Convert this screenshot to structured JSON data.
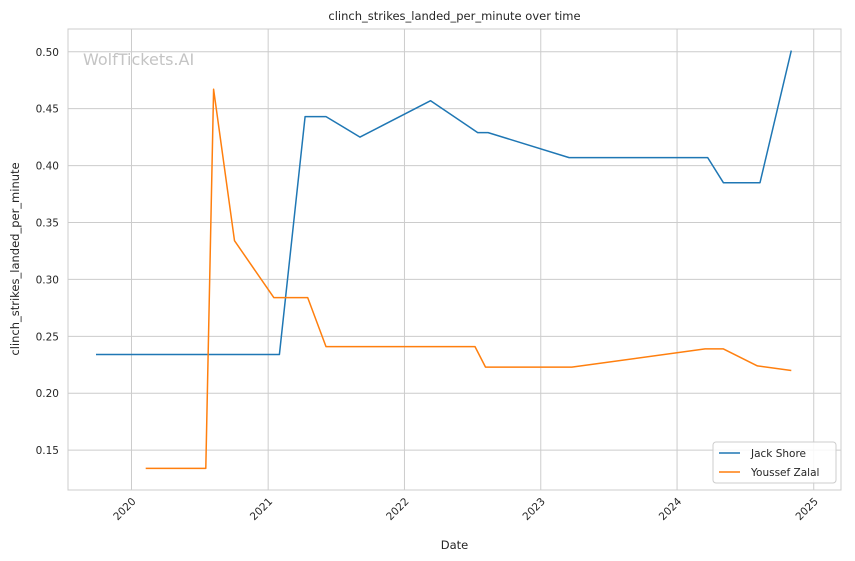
{
  "chart_data": {
    "type": "line",
    "title": "clinch_strikes_landed_per_minute over time",
    "xlabel": "Date",
    "ylabel": "clinch_strikes_landed_per_minute",
    "watermark": "WolfTickets.AI",
    "xlim": [
      "2019-07-15",
      "2025-03-15"
    ],
    "ylim": [
      0.115,
      0.52
    ],
    "x_ticks": [
      "2020",
      "2021",
      "2022",
      "2023",
      "2024",
      "2025"
    ],
    "y_ticks": [
      "0.15",
      "0.20",
      "0.25",
      "0.30",
      "0.35",
      "0.40",
      "0.45",
      "0.50"
    ],
    "grid": true,
    "legend_position": "lower-right",
    "series": [
      {
        "name": "Jack Shore",
        "color": "#1f77b4",
        "points": [
          {
            "x": "2019-09-28",
            "y": 0.234
          },
          {
            "x": "2021-01-31",
            "y": 0.234
          },
          {
            "x": "2021-04-10",
            "y": 0.443
          },
          {
            "x": "2021-06-05",
            "y": 0.443
          },
          {
            "x": "2021-09-04",
            "y": 0.425
          },
          {
            "x": "2022-03-12",
            "y": 0.457
          },
          {
            "x": "2022-07-16",
            "y": 0.429
          },
          {
            "x": "2022-08-13",
            "y": 0.429
          },
          {
            "x": "2023-03-18",
            "y": 0.407
          },
          {
            "x": "2024-03-23",
            "y": 0.407
          },
          {
            "x": "2024-05-04",
            "y": 0.385
          },
          {
            "x": "2024-08-10",
            "y": 0.385
          },
          {
            "x": "2024-11-02",
            "y": 0.501
          }
        ]
      },
      {
        "name": "Youssef Zalal",
        "color": "#ff7f0e",
        "points": [
          {
            "x": "2020-02-08",
            "y": 0.134
          },
          {
            "x": "2020-07-18",
            "y": 0.134
          },
          {
            "x": "2020-08-08",
            "y": 0.467
          },
          {
            "x": "2020-10-03",
            "y": 0.334
          },
          {
            "x": "2021-01-16",
            "y": 0.284
          },
          {
            "x": "2021-04-17",
            "y": 0.284
          },
          {
            "x": "2021-06-05",
            "y": 0.241
          },
          {
            "x": "2022-07-09",
            "y": 0.241
          },
          {
            "x": "2022-08-06",
            "y": 0.223
          },
          {
            "x": "2023-03-25",
            "y": 0.223
          },
          {
            "x": "2024-03-16",
            "y": 0.239
          },
          {
            "x": "2024-05-04",
            "y": 0.239
          },
          {
            "x": "2024-08-03",
            "y": 0.224
          },
          {
            "x": "2024-11-02",
            "y": 0.22
          }
        ]
      }
    ]
  }
}
